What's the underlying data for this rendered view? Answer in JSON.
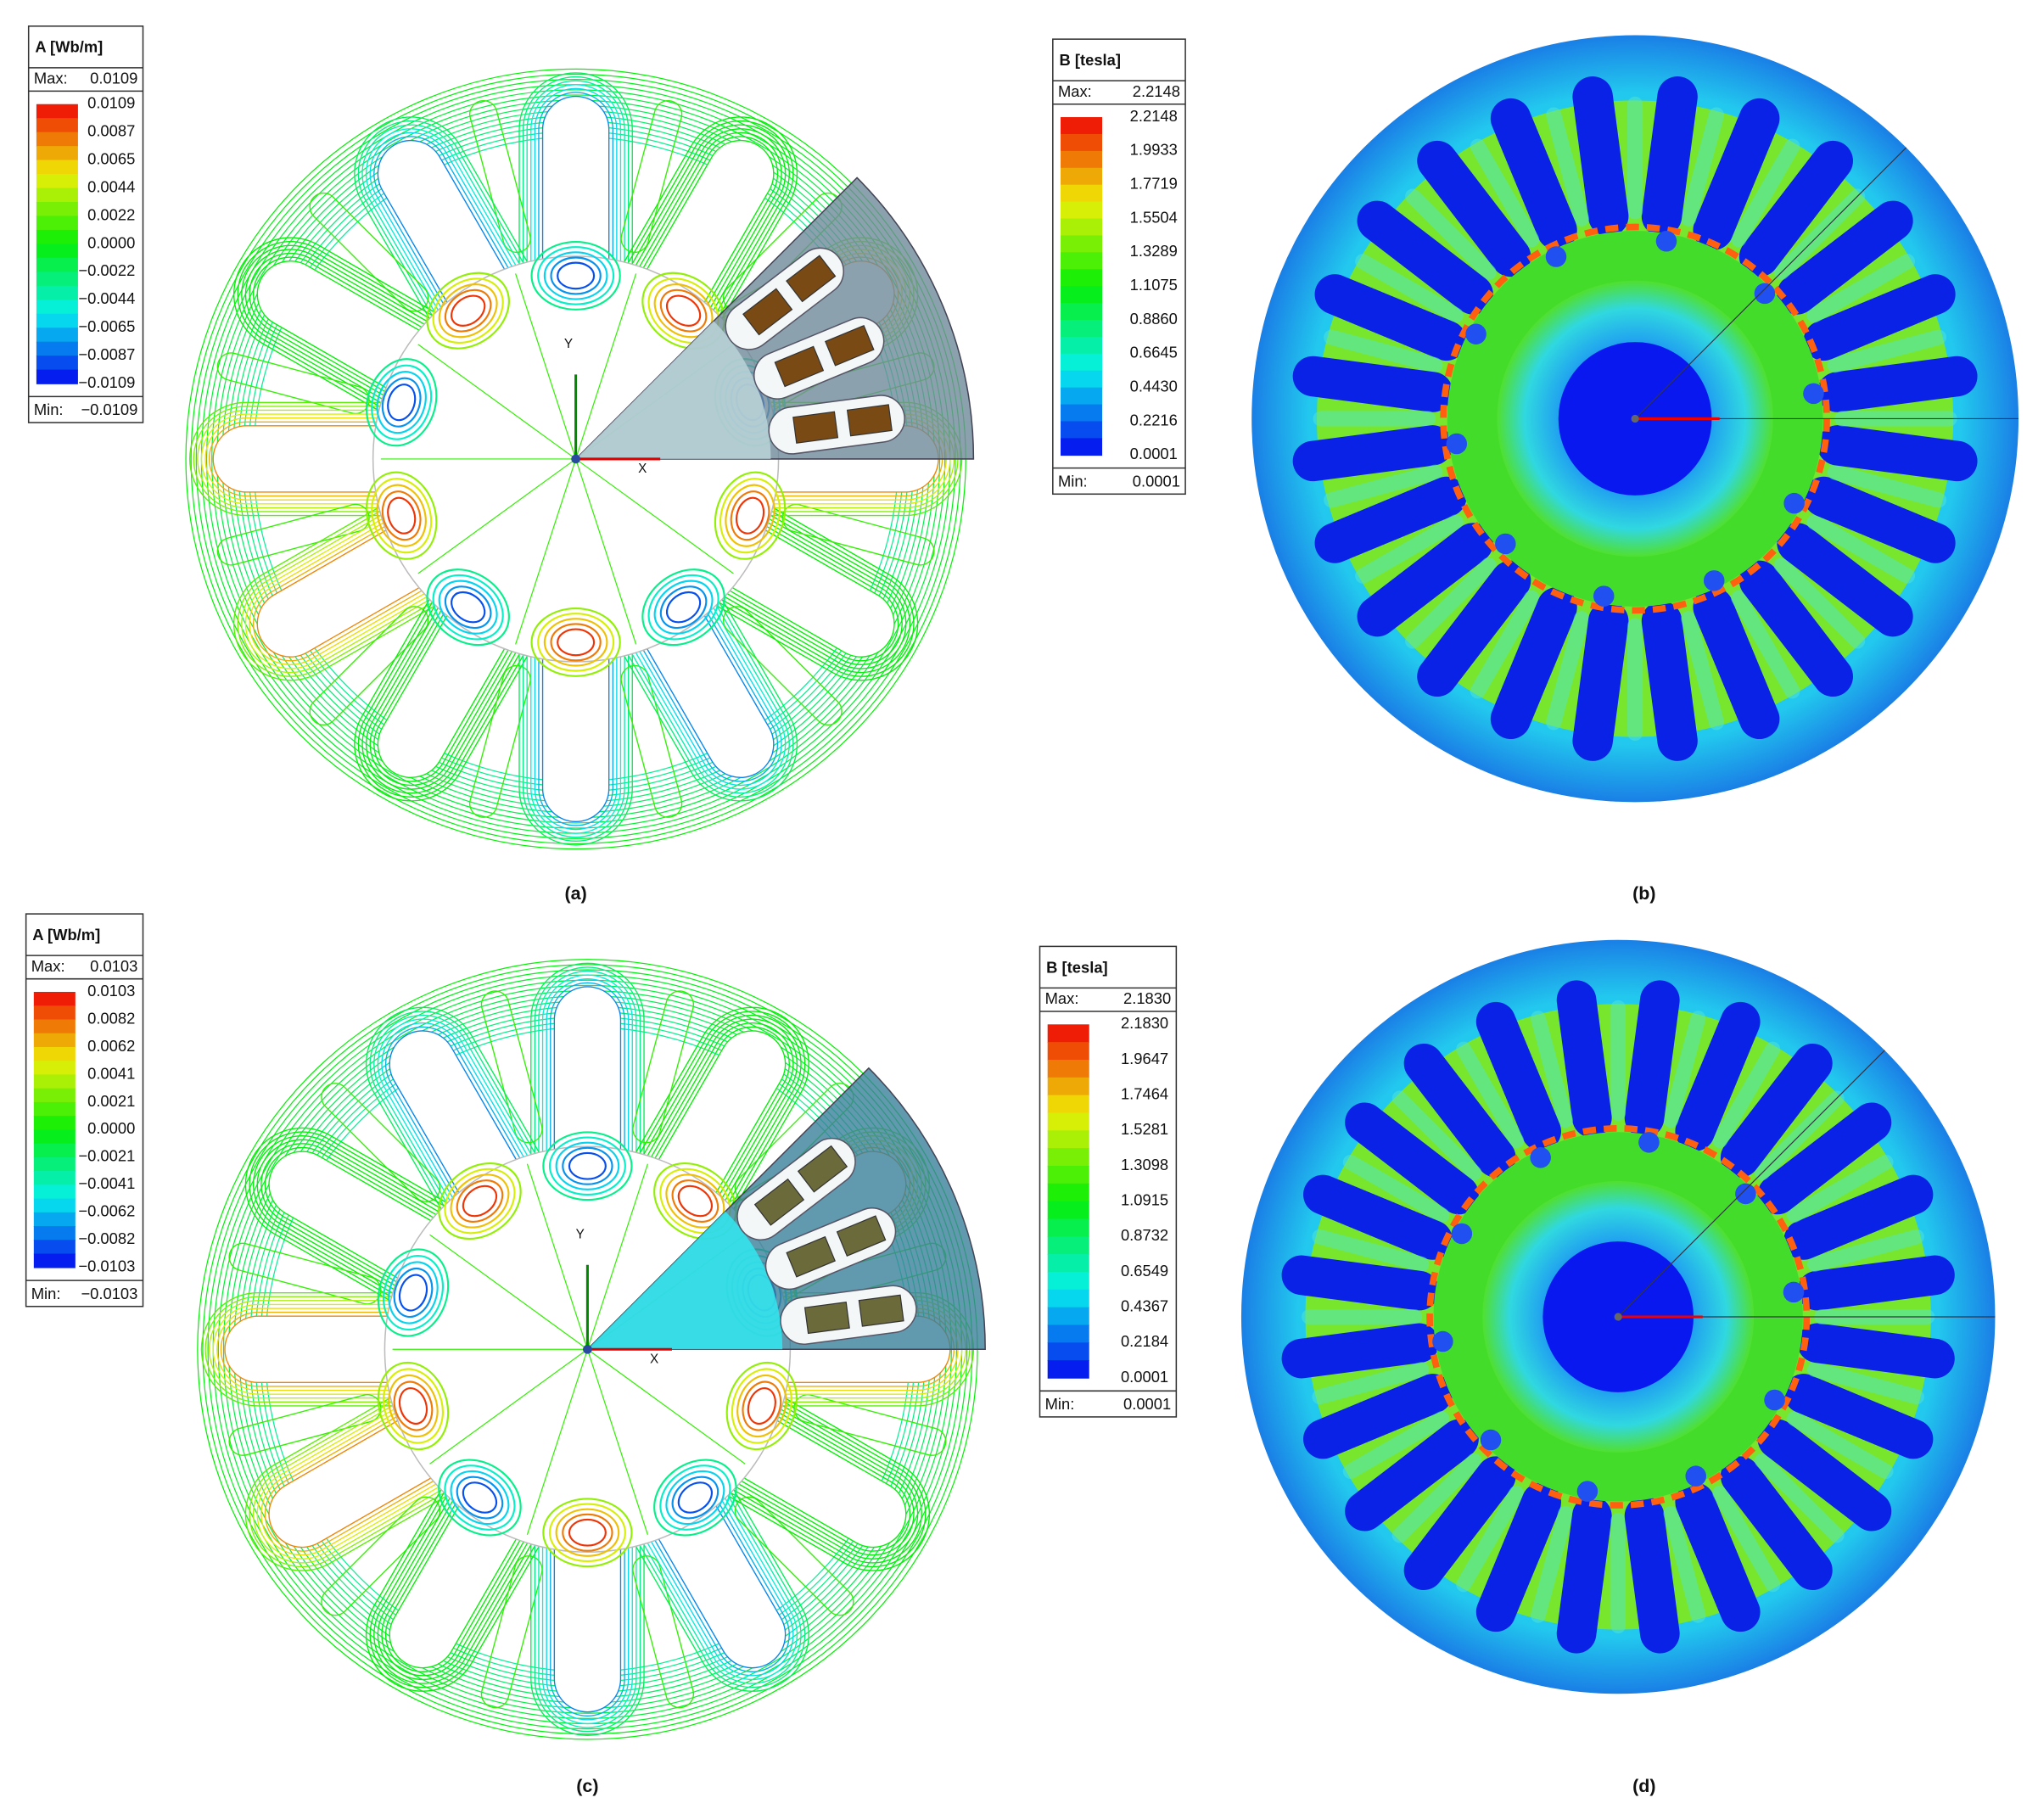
{
  "panels": [
    {
      "label": "(a)",
      "axis_labels": [
        "X",
        "Y"
      ],
      "legend": {
        "title": "A [Wb/m]",
        "max_label": "Max:",
        "max_value": "0.0109",
        "scale": [
          "0.0109",
          "0.0087",
          "0.0065",
          "0.0044",
          "0.0022",
          "0.0000",
          "−0.0022",
          "−0.0044",
          "−0.0065",
          "−0.0087",
          "−0.0109"
        ],
        "min_label": "Min:",
        "min_value": "−0.0109"
      }
    },
    {
      "label": "(b)",
      "legend": {
        "title": "B [tesla]",
        "max_label": "Max:",
        "max_value": "2.2148",
        "scale": [
          "2.2148",
          "1.9933",
          "1.7719",
          "1.5504",
          "1.3289",
          "1.1075",
          "0.8860",
          "0.6645",
          "0.4430",
          "0.2216",
          "0.0001"
        ],
        "min_label": "Min:",
        "min_value": "0.0001"
      }
    },
    {
      "label": "(c)",
      "axis_labels": [
        "X",
        "Y"
      ],
      "legend": {
        "title": "A [Wb/m]",
        "max_label": "Max:",
        "max_value": "0.0103",
        "scale": [
          "0.0103",
          "0.0082",
          "0.0062",
          "0.0041",
          "0.0021",
          "0.0000",
          "−0.0021",
          "−0.0041",
          "−0.0062",
          "−0.0082",
          "−0.0103"
        ],
        "min_label": "Min:",
        "min_value": "−0.0103"
      }
    },
    {
      "label": "(d)",
      "legend": {
        "title": "B [tesla]",
        "max_label": "Max:",
        "max_value": "2.1830",
        "scale": [
          "2.1830",
          "1.9647",
          "1.7464",
          "1.5281",
          "1.3098",
          "1.0915",
          "0.8732",
          "0.6549",
          "0.4367",
          "0.2184",
          "0.0001"
        ],
        "min_label": "Min:",
        "min_value": "0.0001"
      }
    }
  ]
}
